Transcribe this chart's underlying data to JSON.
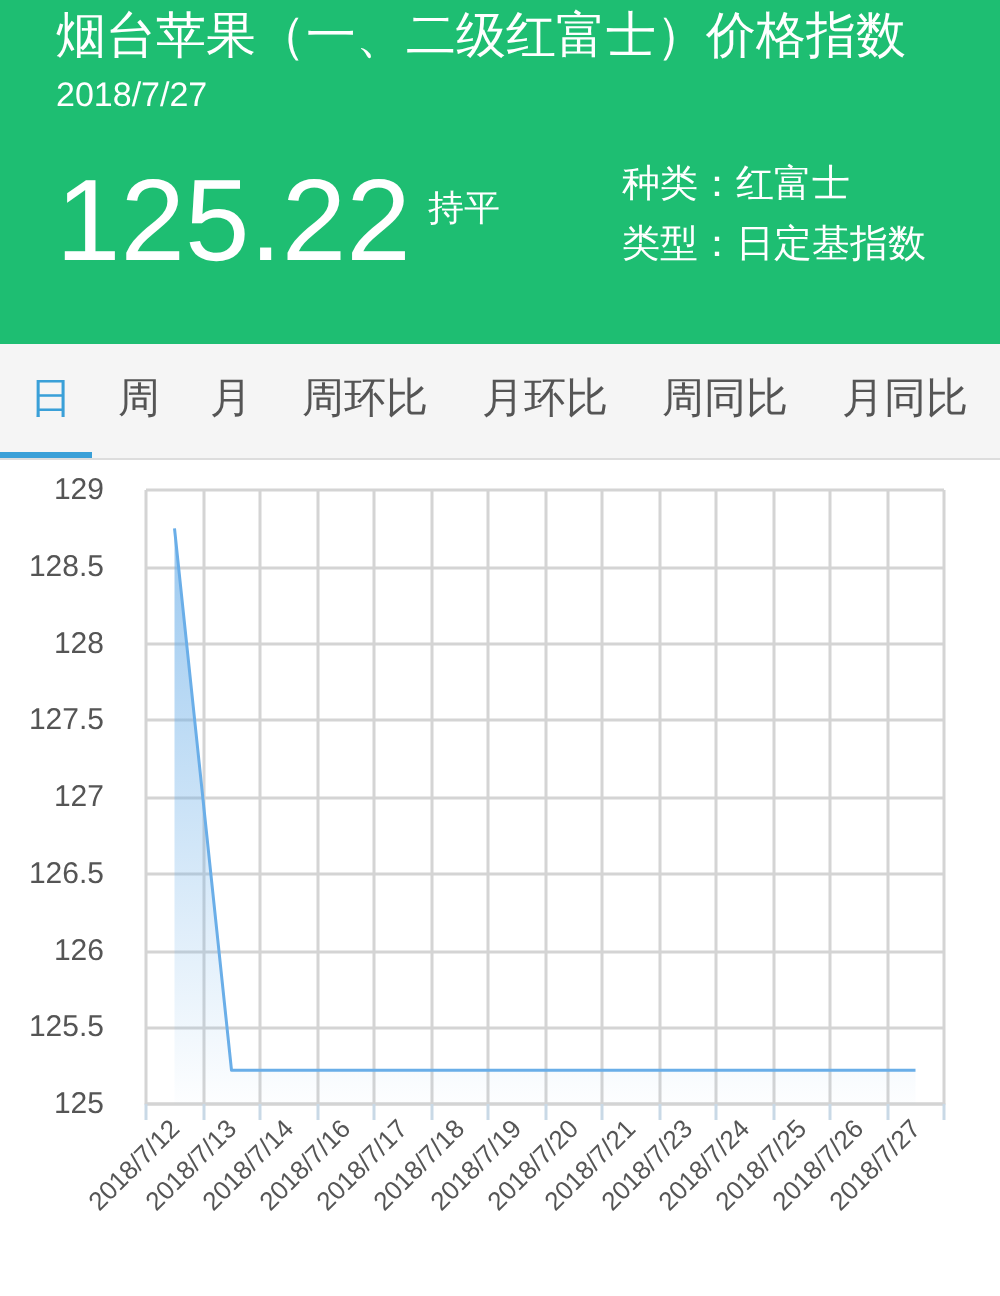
{
  "chart_data": {
    "type": "area",
    "title": "烟台苹果（一、二级红富士）价格指数",
    "subtitle": "2018/7/27",
    "annotations": [
      "125.22",
      "持平",
      "种类：红富士",
      "类型：日定基指数",
      "日",
      "周",
      "月",
      "周环比",
      "月环比",
      "周同比",
      "月同比"
    ],
    "categories": [
      "2018/7/12",
      "2018/7/13",
      "2018/7/14",
      "2018/7/16",
      "2018/7/17",
      "2018/7/18",
      "2018/7/19",
      "2018/7/20",
      "2018/7/21",
      "2018/7/23",
      "2018/7/24",
      "2018/7/25",
      "2018/7/26",
      "2018/7/27"
    ],
    "values": [
      128.75,
      125.22,
      125.22,
      125.22,
      125.22,
      125.22,
      125.22,
      125.22,
      125.22,
      125.22,
      125.22,
      125.22,
      125.22,
      125.22
    ],
    "color": "#6aaee8",
    "ylim": [
      125,
      129
    ],
    "yticks": [
      125,
      125.5,
      126,
      126.5,
      127,
      127.5,
      128,
      128.5,
      129
    ],
    "grid": true,
    "marker": "none"
  }
}
